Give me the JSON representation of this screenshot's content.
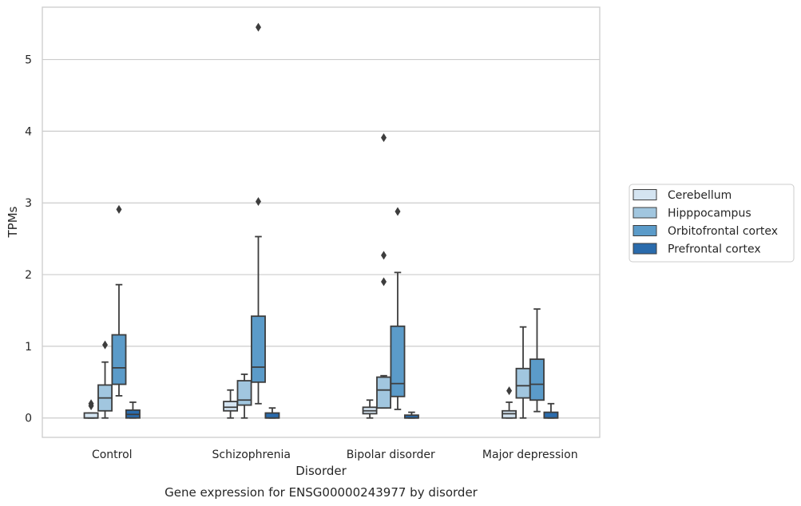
{
  "chart_data": {
    "type": "box",
    "title": "Gene expression for ENSG00000243977 by disorder",
    "xlabel": "Disorder",
    "ylabel": "TPMs",
    "ylim": [
      -0.27,
      5.73
    ],
    "yticks": [
      0,
      1,
      2,
      3,
      4,
      5
    ],
    "grid": "horizontal",
    "legend_position": "right",
    "categories": [
      "Control",
      "Schizophrenia",
      "Bipolar disorder",
      "Major depression"
    ],
    "series": [
      {
        "name": "Cerebellum",
        "color": "#d4e4f1",
        "boxes": [
          {
            "whislo": 0,
            "q1": 0,
            "med": 0,
            "q3": 0.07,
            "whishi": 0.07,
            "fliers": [
              0.17,
              0.2
            ]
          },
          {
            "whislo": 0,
            "q1": 0.1,
            "med": 0.15,
            "q3": 0.23,
            "whishi": 0.39,
            "fliers": []
          },
          {
            "whislo": 0,
            "q1": 0.06,
            "med": 0.1,
            "q3": 0.15,
            "whishi": 0.25,
            "fliers": []
          },
          {
            "whislo": 0,
            "q1": 0,
            "med": 0.06,
            "q3": 0.1,
            "whishi": 0.22,
            "fliers": [
              0.38
            ]
          }
        ]
      },
      {
        "name": "Hipppocampus",
        "color": "#a1c6df",
        "boxes": [
          {
            "whislo": 0,
            "q1": 0.1,
            "med": 0.28,
            "q3": 0.46,
            "whishi": 0.78,
            "fliers": [
              1.02
            ]
          },
          {
            "whislo": 0,
            "q1": 0.18,
            "med": 0.25,
            "q3": 0.52,
            "whishi": 0.61,
            "fliers": []
          },
          {
            "whislo": 0.14,
            "q1": 0.14,
            "med": 0.39,
            "q3": 0.57,
            "whishi": 0.59,
            "fliers": [
              1.9,
              2.27,
              3.91
            ]
          },
          {
            "whislo": 0,
            "q1": 0.28,
            "med": 0.45,
            "q3": 0.69,
            "whishi": 1.27,
            "fliers": []
          }
        ]
      },
      {
        "name": "Orbitofrontal cortex",
        "color": "#5b9bc9",
        "boxes": [
          {
            "whislo": 0.31,
            "q1": 0.47,
            "med": 0.7,
            "q3": 1.16,
            "whishi": 1.86,
            "fliers": [
              2.91
            ]
          },
          {
            "whislo": 0.2,
            "q1": 0.5,
            "med": 0.71,
            "q3": 1.42,
            "whishi": 2.53,
            "fliers": [
              3.02,
              5.45
            ]
          },
          {
            "whislo": 0.12,
            "q1": 0.3,
            "med": 0.48,
            "q3": 1.28,
            "whishi": 2.03,
            "fliers": [
              2.88
            ]
          },
          {
            "whislo": 0.09,
            "q1": 0.25,
            "med": 0.47,
            "q3": 0.82,
            "whishi": 1.52,
            "fliers": []
          }
        ]
      },
      {
        "name": "Prefrontal cortex",
        "color": "#2a6bac",
        "boxes": [
          {
            "whislo": 0,
            "q1": 0,
            "med": 0.05,
            "q3": 0.11,
            "whishi": 0.22,
            "fliers": []
          },
          {
            "whislo": 0,
            "q1": 0,
            "med": 0,
            "q3": 0.07,
            "whishi": 0.14,
            "fliers": []
          },
          {
            "whislo": 0,
            "q1": 0,
            "med": 0,
            "q3": 0.04,
            "whishi": 0.08,
            "fliers": []
          },
          {
            "whislo": 0,
            "q1": 0,
            "med": 0,
            "q3": 0.08,
            "whishi": 0.2,
            "fliers": []
          }
        ]
      }
    ]
  }
}
